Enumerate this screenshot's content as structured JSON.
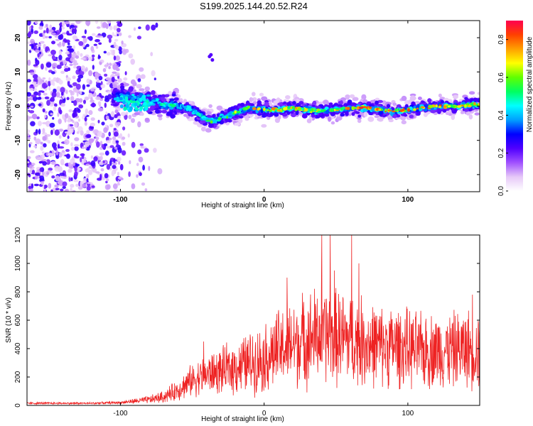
{
  "title": "S199.2025.144.20.52.R24",
  "chart_data": [
    {
      "type": "heatmap",
      "xlabel": "Height of straight line (km)",
      "ylabel": "Frequency (Hz)",
      "xlim": [
        -165,
        150
      ],
      "ylim": [
        -25,
        25
      ],
      "x_ticks": [
        -100,
        0,
        100
      ],
      "y_ticks": [
        -20,
        -10,
        0,
        10,
        20
      ],
      "colorbar": {
        "label": "Normalized spectral amplitude",
        "range": [
          0,
          0.9
        ],
        "ticks": [
          0.0,
          0.2,
          0.4,
          0.6,
          0.8
        ],
        "colors": [
          "#ffffff",
          "#e6c8f8",
          "#a050ff",
          "#5000ff",
          "#0000ff",
          "#00a0ff",
          "#00ffff",
          "#00ff60",
          "#60ff00",
          "#ffff00",
          "#ffa000",
          "#ff4000",
          "#ff0050"
        ]
      },
      "ridge": {
        "x": [
          -100,
          -90,
          -80,
          -70,
          -60,
          -50,
          -45,
          -40,
          -35,
          -30,
          -20,
          -10,
          0,
          10,
          20,
          30,
          40,
          50,
          60,
          70,
          80,
          90,
          100,
          110,
          120,
          130,
          140,
          150
        ],
        "freq": [
          3,
          2.5,
          1.5,
          0.5,
          0,
          -1,
          -2.5,
          -4,
          -4.5,
          -3.5,
          -2,
          -0.5,
          -1,
          -1,
          -0.5,
          -1,
          -1.5,
          -1,
          -0.5,
          -0.5,
          -1,
          -1.5,
          -1,
          -0.5,
          0,
          0,
          0.3,
          0.5
        ],
        "amplitude": [
          0.5,
          0.55,
          0.55,
          0.5,
          0.5,
          0.5,
          0.55,
          0.55,
          0.6,
          0.6,
          0.7,
          0.75,
          0.75,
          0.75,
          0.75,
          0.7,
          0.7,
          0.7,
          0.8,
          0.85,
          0.85,
          0.8,
          0.8,
          0.8,
          0.8,
          0.8,
          0.8,
          0.8
        ]
      }
    },
    {
      "type": "line",
      "xlabel": "Height of straight line (km)",
      "ylabel": "SNR (10 * v/v)",
      "xlim": [
        -165,
        150
      ],
      "ylim": [
        0,
        1200
      ],
      "x_ticks": [
        -100,
        0,
        100
      ],
      "y_ticks": [
        0,
        200,
        400,
        600,
        800,
        1000,
        1200
      ],
      "color": "#ee2222",
      "envelope": {
        "x": [
          -165,
          -120,
          -100,
          -90,
          -80,
          -70,
          -60,
          -50,
          -40,
          -30,
          -20,
          -10,
          0,
          10,
          20,
          30,
          40,
          50,
          60,
          70,
          80,
          90,
          100,
          110,
          120,
          130,
          140,
          150
        ],
        "mean": [
          15,
          15,
          20,
          30,
          40,
          60,
          110,
          180,
          220,
          240,
          270,
          300,
          330,
          390,
          430,
          470,
          500,
          480,
          470,
          440,
          420,
          420,
          400,
          380,
          390,
          390,
          400,
          400
        ],
        "spread": [
          8,
          8,
          10,
          20,
          30,
          45,
          80,
          120,
          150,
          170,
          200,
          230,
          250,
          300,
          330,
          350,
          380,
          360,
          350,
          330,
          300,
          300,
          290,
          280,
          280,
          280,
          290,
          300
        ]
      },
      "spikes": [
        {
          "x": 40,
          "y": 1200
        },
        {
          "x": 46,
          "y": 1200
        },
        {
          "x": 61,
          "y": 1200
        },
        {
          "x": 16,
          "y": 900
        },
        {
          "x": 49,
          "y": 950
        },
        {
          "x": 66,
          "y": 1000
        },
        {
          "x": -42,
          "y": 450
        },
        {
          "x": 145,
          "y": 780
        }
      ]
    }
  ]
}
